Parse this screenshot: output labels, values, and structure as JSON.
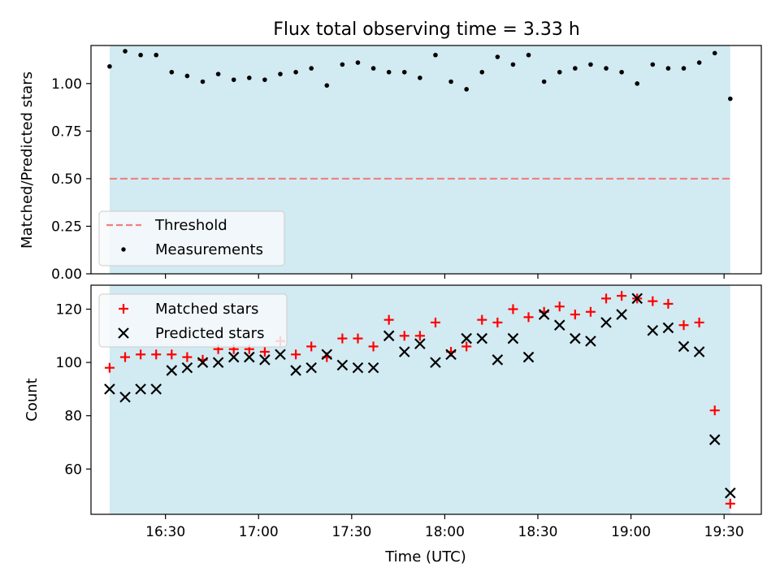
{
  "figure": {
    "title": "Flux total observing time = 3.33 h"
  },
  "colors": {
    "shade": "#add8e6",
    "threshold": "#f08080",
    "matched": "#ff0000",
    "predicted": "#000000",
    "measurement": "#000000"
  },
  "chart_data": [
    {
      "type": "scatter",
      "ylabel": "Matched/Predicted stars",
      "ylim": [
        0,
        1.2
      ],
      "yticks": [
        0.0,
        0.25,
        0.5,
        0.75,
        1.0
      ],
      "ytick_labels": [
        "0.00",
        "0.25",
        "0.50",
        "0.75",
        "1.00"
      ],
      "xlim": [
        "16:06",
        "19:42"
      ],
      "shaded_interval": [
        "16:12",
        "19:32"
      ],
      "threshold": 0.5,
      "legend": {
        "placement": "lower-left",
        "entries": [
          "Threshold",
          "Measurements"
        ]
      },
      "series": [
        {
          "name": "Measurements",
          "x": [
            "16:12",
            "16:17",
            "16:22",
            "16:27",
            "16:32",
            "16:37",
            "16:42",
            "16:47",
            "16:52",
            "16:57",
            "17:02",
            "17:07",
            "17:12",
            "17:17",
            "17:22",
            "17:27",
            "17:32",
            "17:37",
            "17:42",
            "17:47",
            "17:52",
            "17:57",
            "18:02",
            "18:07",
            "18:12",
            "18:17",
            "18:22",
            "18:27",
            "18:32",
            "18:37",
            "18:42",
            "18:47",
            "18:52",
            "18:57",
            "19:02",
            "19:07",
            "19:12",
            "19:17",
            "19:22",
            "19:27",
            "19:32"
          ],
          "values": [
            1.09,
            1.17,
            1.15,
            1.15,
            1.06,
            1.04,
            1.01,
            1.05,
            1.02,
            1.03,
            1.02,
            1.05,
            1.06,
            1.08,
            0.99,
            1.1,
            1.11,
            1.08,
            1.06,
            1.06,
            1.03,
            1.15,
            1.01,
            0.97,
            1.06,
            1.14,
            1.1,
            1.15,
            1.01,
            1.06,
            1.08,
            1.1,
            1.08,
            1.06,
            1.0,
            1.1,
            1.08,
            1.08,
            1.11,
            1.16,
            0.92
          ]
        }
      ]
    },
    {
      "type": "scatter",
      "ylabel": "Count",
      "xlabel": "Time (UTC)",
      "ylim": [
        43,
        129
      ],
      "yticks": [
        60,
        80,
        100,
        120
      ],
      "xticks": [
        "16:30",
        "17:00",
        "17:30",
        "18:00",
        "18:30",
        "19:00",
        "19:30"
      ],
      "xlim": [
        "16:06",
        "19:42"
      ],
      "shaded_interval": [
        "16:12",
        "19:32"
      ],
      "legend": {
        "placement": "upper-left",
        "entries": [
          "Matched stars",
          "Predicted stars"
        ]
      },
      "series": [
        {
          "name": "Matched stars",
          "x": [
            "16:12",
            "16:17",
            "16:22",
            "16:27",
            "16:32",
            "16:37",
            "16:42",
            "16:47",
            "16:52",
            "16:57",
            "17:02",
            "17:07",
            "17:12",
            "17:17",
            "17:22",
            "17:27",
            "17:32",
            "17:37",
            "17:42",
            "17:47",
            "17:52",
            "17:57",
            "18:02",
            "18:07",
            "18:12",
            "18:17",
            "18:22",
            "18:27",
            "18:32",
            "18:37",
            "18:42",
            "18:47",
            "18:52",
            "18:57",
            "19:02",
            "19:07",
            "19:12",
            "19:17",
            "19:22",
            "19:27",
            "19:32"
          ],
          "values": [
            98,
            102,
            103,
            103,
            103,
            102,
            101,
            105,
            105,
            105,
            104,
            108,
            103,
            106,
            102,
            109,
            109,
            106,
            116,
            110,
            110,
            115,
            104,
            106,
            116,
            115,
            120,
            117,
            119,
            121,
            118,
            119,
            124,
            125,
            124,
            123,
            122,
            114,
            115,
            82,
            47
          ]
        },
        {
          "name": "Predicted stars",
          "x": [
            "16:12",
            "16:17",
            "16:22",
            "16:27",
            "16:32",
            "16:37",
            "16:42",
            "16:47",
            "16:52",
            "16:57",
            "17:02",
            "17:07",
            "17:12",
            "17:17",
            "17:22",
            "17:27",
            "17:32",
            "17:37",
            "17:42",
            "17:47",
            "17:52",
            "17:57",
            "18:02",
            "18:07",
            "18:12",
            "18:17",
            "18:22",
            "18:27",
            "18:32",
            "18:37",
            "18:42",
            "18:47",
            "18:52",
            "18:57",
            "19:02",
            "19:07",
            "19:12",
            "19:17",
            "19:22",
            "19:27",
            "19:32"
          ],
          "values": [
            90,
            87,
            90,
            90,
            97,
            98,
            100,
            100,
            102,
            102,
            101,
            103,
            97,
            98,
            103,
            99,
            98,
            98,
            110,
            104,
            107,
            100,
            103,
            109,
            109,
            101,
            109,
            102,
            118,
            114,
            109,
            108,
            115,
            118,
            124,
            112,
            113,
            106,
            104,
            71,
            51
          ]
        }
      ]
    }
  ]
}
